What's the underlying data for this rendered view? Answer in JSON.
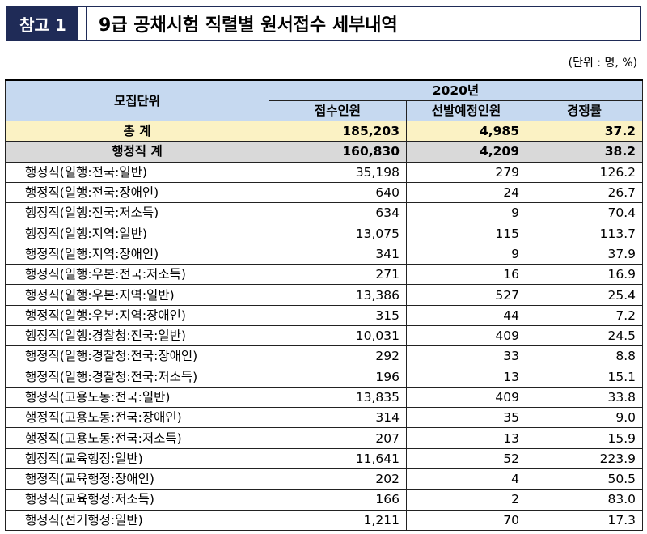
{
  "header": {
    "badge": "참고 1",
    "title": "9급 공채시험 직렬별 원서접수 세부내역"
  },
  "unit_note": "(단위 : 명, %)",
  "table": {
    "head_unit": "모집단위",
    "head_year": "2020년",
    "columns": [
      "접수인원",
      "선발예정인원",
      "경쟁률"
    ],
    "total": {
      "label": "총   계",
      "values": [
        "185,203",
        "4,985",
        "37.2"
      ]
    },
    "subtotal": {
      "label": "행정직 계",
      "values": [
        "160,830",
        "4,209",
        "38.2"
      ]
    },
    "rows": [
      {
        "label": "행정직(일행:전국:일반)",
        "values": [
          "35,198",
          "279",
          "126.2"
        ]
      },
      {
        "label": "행정직(일행:전국:장애인)",
        "values": [
          "640",
          "24",
          "26.7"
        ]
      },
      {
        "label": "행정직(일행:전국:저소득)",
        "values": [
          "634",
          "9",
          "70.4"
        ]
      },
      {
        "label": "행정직(일행:지역:일반)",
        "values": [
          "13,075",
          "115",
          "113.7"
        ]
      },
      {
        "label": "행정직(일행:지역:장애인)",
        "values": [
          "341",
          "9",
          "37.9"
        ]
      },
      {
        "label": "행정직(일행:우본:전국:저소득)",
        "values": [
          "271",
          "16",
          "16.9"
        ]
      },
      {
        "label": "행정직(일행:우본:지역:일반)",
        "values": [
          "13,386",
          "527",
          "25.4"
        ]
      },
      {
        "label": "행정직(일행:우본:지역:장애인)",
        "values": [
          "315",
          "44",
          "7.2"
        ]
      },
      {
        "label": "행정직(일행:경찰청:전국:일반)",
        "values": [
          "10,031",
          "409",
          "24.5"
        ]
      },
      {
        "label": "행정직(일행:경찰청:전국:장애인)",
        "values": [
          "292",
          "33",
          "8.8"
        ]
      },
      {
        "label": "행정직(일행:경찰청:전국:저소득)",
        "values": [
          "196",
          "13",
          "15.1"
        ]
      },
      {
        "label": "행정직(고용노동:전국:일반)",
        "values": [
          "13,835",
          "409",
          "33.8"
        ]
      },
      {
        "label": "행정직(고용노동:전국:장애인)",
        "values": [
          "314",
          "35",
          "9.0"
        ]
      },
      {
        "label": "행정직(고용노동:전국:저소득)",
        "values": [
          "207",
          "13",
          "15.9"
        ]
      },
      {
        "label": "행정직(교육행정:일반)",
        "values": [
          "11,641",
          "52",
          "223.9"
        ]
      },
      {
        "label": "행정직(교육행정:장애인)",
        "values": [
          "202",
          "4",
          "50.5"
        ]
      },
      {
        "label": "행정직(교육행정:저소득)",
        "values": [
          "166",
          "2",
          "83.0"
        ]
      },
      {
        "label": "행정직(선거행정:일반)",
        "values": [
          "1,211",
          "70",
          "17.3"
        ]
      }
    ]
  }
}
